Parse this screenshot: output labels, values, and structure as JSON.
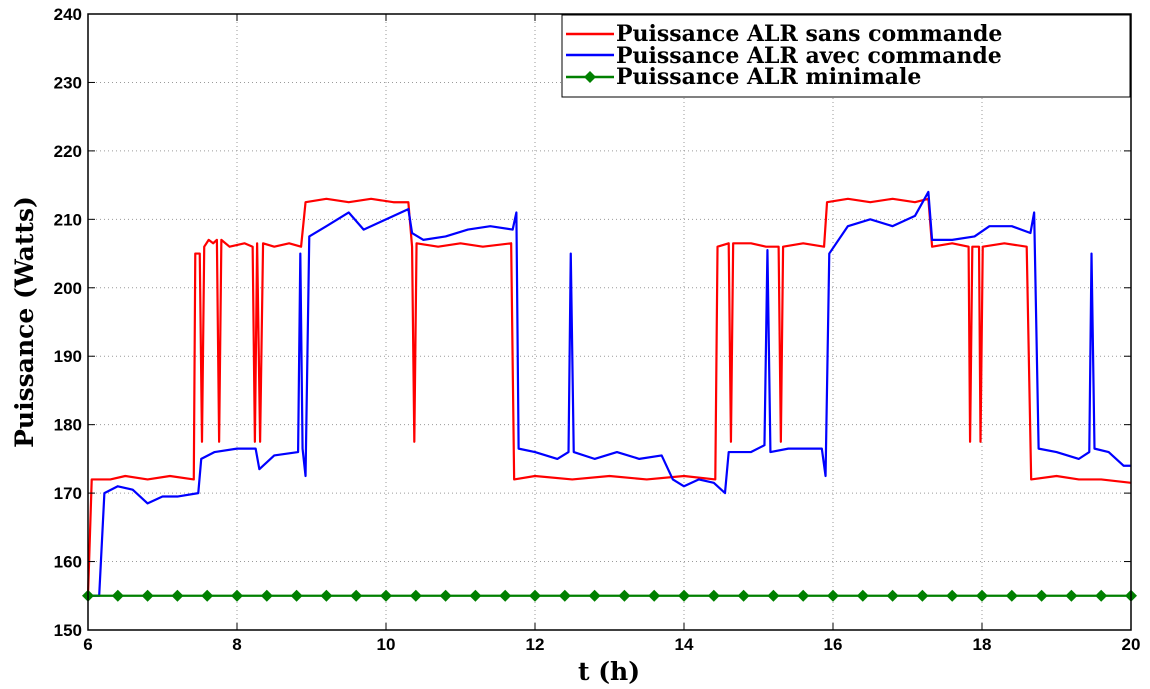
{
  "chart_data": {
    "type": "line",
    "xlabel": "t (h)",
    "ylabel": "Puissance (Watts)",
    "xlim": [
      6,
      20
    ],
    "ylim": [
      150,
      240
    ],
    "xticks": [
      6,
      8,
      10,
      12,
      14,
      16,
      18,
      20
    ],
    "yticks": [
      150,
      160,
      170,
      180,
      190,
      200,
      210,
      220,
      230,
      240
    ],
    "grid": true,
    "legend_position": "top-right",
    "series": [
      {
        "name": "Puissance ALR sans commande",
        "color": "#ff0000",
        "points": [
          [
            6.0,
            155
          ],
          [
            6.05,
            172
          ],
          [
            6.3,
            172
          ],
          [
            6.5,
            172.5
          ],
          [
            6.8,
            172
          ],
          [
            7.1,
            172.5
          ],
          [
            7.42,
            172
          ],
          [
            7.44,
            205
          ],
          [
            7.5,
            205
          ],
          [
            7.53,
            177.5
          ],
          [
            7.56,
            206
          ],
          [
            7.62,
            207
          ],
          [
            7.68,
            206.5
          ],
          [
            7.73,
            207
          ],
          [
            7.76,
            177.5
          ],
          [
            7.79,
            207
          ],
          [
            7.9,
            206
          ],
          [
            8.1,
            206.5
          ],
          [
            8.21,
            206
          ],
          [
            8.24,
            177.5
          ],
          [
            8.27,
            206.5
          ],
          [
            8.31,
            177.5
          ],
          [
            8.35,
            206.5
          ],
          [
            8.5,
            206
          ],
          [
            8.7,
            206.5
          ],
          [
            8.86,
            206
          ],
          [
            8.92,
            212.5
          ],
          [
            9.2,
            213
          ],
          [
            9.5,
            212.5
          ],
          [
            9.8,
            213
          ],
          [
            10.1,
            212.5
          ],
          [
            10.3,
            212.5
          ],
          [
            10.35,
            206
          ],
          [
            10.38,
            177.5
          ],
          [
            10.41,
            206.5
          ],
          [
            10.7,
            206
          ],
          [
            11.0,
            206.5
          ],
          [
            11.3,
            206
          ],
          [
            11.68,
            206.5
          ],
          [
            11.72,
            172
          ],
          [
            12.0,
            172.5
          ],
          [
            12.5,
            172
          ],
          [
            13.0,
            172.5
          ],
          [
            13.5,
            172
          ],
          [
            14.0,
            172.5
          ],
          [
            14.42,
            172
          ],
          [
            14.45,
            206
          ],
          [
            14.6,
            206.5
          ],
          [
            14.63,
            177.5
          ],
          [
            14.66,
            206.5
          ],
          [
            14.9,
            206.5
          ],
          [
            15.1,
            206
          ],
          [
            15.27,
            206
          ],
          [
            15.3,
            177.5
          ],
          [
            15.33,
            206
          ],
          [
            15.6,
            206.5
          ],
          [
            15.88,
            206
          ],
          [
            15.92,
            212.5
          ],
          [
            16.2,
            213
          ],
          [
            16.5,
            212.5
          ],
          [
            16.8,
            213
          ],
          [
            17.1,
            212.5
          ],
          [
            17.28,
            213
          ],
          [
            17.33,
            206
          ],
          [
            17.6,
            206.5
          ],
          [
            17.82,
            206
          ],
          [
            17.84,
            177.5
          ],
          [
            17.87,
            206
          ],
          [
            17.96,
            206
          ],
          [
            17.98,
            177.5
          ],
          [
            18.01,
            206
          ],
          [
            18.3,
            206.5
          ],
          [
            18.6,
            206
          ],
          [
            18.66,
            172
          ],
          [
            19.0,
            172.5
          ],
          [
            19.3,
            172
          ],
          [
            19.6,
            172
          ],
          [
            20.0,
            171.5
          ]
        ]
      },
      {
        "name": "Puissance ALR avec commande",
        "color": "#0000ff",
        "points": [
          [
            6.0,
            155
          ],
          [
            6.15,
            155
          ],
          [
            6.22,
            170
          ],
          [
            6.4,
            171
          ],
          [
            6.6,
            170.5
          ],
          [
            6.8,
            168.5
          ],
          [
            7.0,
            169.5
          ],
          [
            7.2,
            169.5
          ],
          [
            7.48,
            170
          ],
          [
            7.52,
            175
          ],
          [
            7.7,
            176
          ],
          [
            8.0,
            176.5
          ],
          [
            8.25,
            176.5
          ],
          [
            8.3,
            173.5
          ],
          [
            8.5,
            175.5
          ],
          [
            8.82,
            176
          ],
          [
            8.85,
            205
          ],
          [
            8.88,
            176.5
          ],
          [
            8.92,
            172.5
          ],
          [
            8.97,
            207.5
          ],
          [
            9.2,
            209
          ],
          [
            9.5,
            211
          ],
          [
            9.7,
            208.5
          ],
          [
            10.0,
            210
          ],
          [
            10.3,
            211.5
          ],
          [
            10.35,
            208
          ],
          [
            10.5,
            207
          ],
          [
            10.8,
            207.5
          ],
          [
            11.1,
            208.5
          ],
          [
            11.4,
            209
          ],
          [
            11.7,
            208.5
          ],
          [
            11.75,
            211
          ],
          [
            11.78,
            176.5
          ],
          [
            12.0,
            176
          ],
          [
            12.3,
            175
          ],
          [
            12.45,
            176
          ],
          [
            12.48,
            205
          ],
          [
            12.52,
            176
          ],
          [
            12.8,
            175
          ],
          [
            13.1,
            176
          ],
          [
            13.4,
            175
          ],
          [
            13.7,
            175.5
          ],
          [
            13.85,
            172
          ],
          [
            14.0,
            171
          ],
          [
            14.2,
            172
          ],
          [
            14.4,
            171.5
          ],
          [
            14.55,
            170
          ],
          [
            14.6,
            176
          ],
          [
            14.9,
            176
          ],
          [
            15.08,
            177
          ],
          [
            15.12,
            205.5
          ],
          [
            15.16,
            176
          ],
          [
            15.4,
            176.5
          ],
          [
            15.85,
            176.5
          ],
          [
            15.9,
            172.5
          ],
          [
            15.95,
            205
          ],
          [
            16.2,
            209
          ],
          [
            16.5,
            210
          ],
          [
            16.8,
            209
          ],
          [
            17.1,
            210.5
          ],
          [
            17.28,
            214
          ],
          [
            17.33,
            207
          ],
          [
            17.6,
            207
          ],
          [
            17.9,
            207.5
          ],
          [
            18.1,
            209
          ],
          [
            18.4,
            209
          ],
          [
            18.65,
            208
          ],
          [
            18.7,
            211
          ],
          [
            18.76,
            176.5
          ],
          [
            19.0,
            176
          ],
          [
            19.3,
            175
          ],
          [
            19.44,
            176
          ],
          [
            19.47,
            205
          ],
          [
            19.51,
            176.5
          ],
          [
            19.7,
            176
          ],
          [
            19.9,
            174
          ],
          [
            20.0,
            174
          ]
        ]
      },
      {
        "name": "Puissance ALR minimale",
        "color": "#008000",
        "marker": "diamond",
        "x": [
          6.0,
          6.4,
          6.8,
          7.2,
          7.6,
          8.0,
          8.4,
          8.8,
          9.2,
          9.6,
          10.0,
          10.4,
          10.8,
          11.2,
          11.6,
          12.0,
          12.4,
          12.8,
          13.2,
          13.6,
          14.0,
          14.4,
          14.8,
          15.2,
          15.6,
          16.0,
          16.4,
          16.8,
          17.2,
          17.6,
          18.0,
          18.4,
          18.8,
          19.2,
          19.6,
          20.0
        ],
        "y": [
          155,
          155,
          155,
          155,
          155,
          155,
          155,
          155,
          155,
          155,
          155,
          155,
          155,
          155,
          155,
          155,
          155,
          155,
          155,
          155,
          155,
          155,
          155,
          155,
          155,
          155,
          155,
          155,
          155,
          155,
          155,
          155,
          155,
          155,
          155,
          155
        ]
      }
    ]
  }
}
